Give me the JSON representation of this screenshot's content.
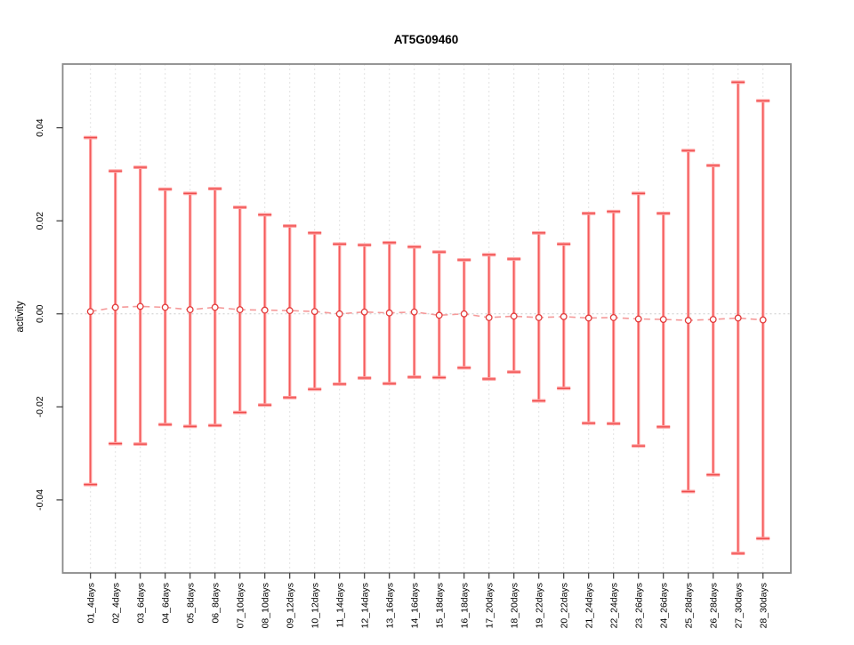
{
  "chart_data": {
    "type": "scatter",
    "title": "AT5G09460",
    "xlabel": "",
    "ylabel": "activity",
    "legend": "none",
    "grid": "vertical dotted gridlines per category; dotted horizontal line at y=0",
    "categories": [
      "01_4days",
      "02_4days",
      "03_6days",
      "04_6days",
      "05_8days",
      "06_8days",
      "07_10days",
      "08_10days",
      "09_12days",
      "10_12days",
      "11_14days",
      "12_14days",
      "13_16days",
      "14_16days",
      "15_18days",
      "16_18days",
      "17_20days",
      "18_20days",
      "19_22days",
      "20_22days",
      "21_24days",
      "22_24days",
      "23_26days",
      "24_26days",
      "25_28days",
      "26_28days",
      "27_30days",
      "28_30days"
    ],
    "series": [
      {
        "name": "mean",
        "values": [
          0.0005,
          0.0014,
          0.0016,
          0.0014,
          0.0009,
          0.0014,
          0.0009,
          0.0008,
          0.0007,
          0.0005,
          0.0,
          0.0004,
          0.0002,
          0.0004,
          -0.0003,
          0.0,
          -0.0008,
          -0.0005,
          -0.0008,
          -0.0006,
          -0.0009,
          -0.0008,
          -0.0011,
          -0.0012,
          -0.0014,
          -0.0012,
          -0.0009,
          -0.0013
        ]
      },
      {
        "name": "upper",
        "values": [
          0.0379,
          0.0307,
          0.0315,
          0.0268,
          0.0259,
          0.0269,
          0.0229,
          0.0213,
          0.0189,
          0.0174,
          0.015,
          0.0148,
          0.0153,
          0.0144,
          0.0133,
          0.0116,
          0.0127,
          0.0118,
          0.0174,
          0.015,
          0.0216,
          0.022,
          0.0259,
          0.0216,
          0.0351,
          0.0319,
          0.0498,
          0.0458
        ]
      },
      {
        "name": "lower",
        "values": [
          -0.0367,
          -0.0279,
          -0.028,
          -0.0238,
          -0.0242,
          -0.024,
          -0.0212,
          -0.0196,
          -0.018,
          -0.0162,
          -0.0151,
          -0.0138,
          -0.015,
          -0.0136,
          -0.0137,
          -0.0116,
          -0.014,
          -0.0125,
          -0.0187,
          -0.016,
          -0.0235,
          -0.0236,
          -0.0284,
          -0.0243,
          -0.0382,
          -0.0346,
          -0.0515,
          -0.0483
        ]
      }
    ],
    "yticks": [
      -0.04,
      -0.02,
      0.0,
      0.02,
      0.04
    ],
    "ylim": [
      -0.0557,
      0.0537
    ],
    "colors": {
      "errorbar_light": "#ffa3a3",
      "errorbar_core": "#f25252",
      "cap_light": "#ff9e9e",
      "cap_core": "#ee4c4c",
      "point_stroke": "#e23b3b",
      "connector": "#f59a9a",
      "gridline": "#e2e2e2",
      "zero_line": "#cccccc",
      "box": "#8a8a8a",
      "tick": "#3a3a3a",
      "text": "#000000"
    }
  }
}
